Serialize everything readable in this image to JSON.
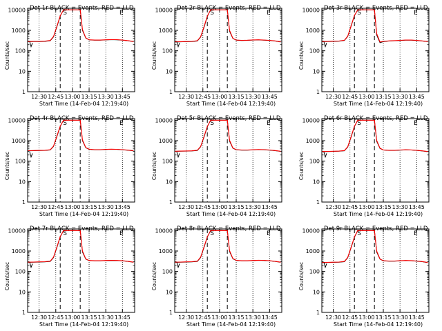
{
  "common": {
    "legend_suffix": "BLACK = Events, RED = LLD",
    "ylabel": "Counts/sec",
    "xlabel": "Start Time (14-Feb-04 12:19:40)",
    "xticks": [
      "12:30",
      "12:45",
      "13:00",
      "13:15",
      "13:30",
      "13:45"
    ],
    "yticks": [
      "1",
      "10",
      "100",
      "1000",
      "10000"
    ],
    "markers": {
      "start": "S",
      "end": "E"
    },
    "colors": {
      "events": "#000000",
      "lld": "#ff0000"
    }
  },
  "chart_data": [
    {
      "type": "line",
      "title": "Det 1r",
      "xlabel": "Start Time (14-Feb-04 12:19:40)",
      "ylabel": "Counts/sec",
      "yscale": "log",
      "ylim": [
        1,
        12000
      ],
      "xlim": [
        "12:19:40",
        "13:56:00"
      ],
      "x": [
        "12:20",
        "12:25",
        "12:30",
        "12:35",
        "12:40",
        "12:43",
        "12:46",
        "12:49",
        "12:52",
        "13:07",
        "13:09",
        "13:12",
        "13:15",
        "13:20",
        "13:25",
        "13:30",
        "13:35",
        "13:40",
        "13:45",
        "13:50",
        "13:55"
      ],
      "series": [
        {
          "name": "Events",
          "values": [
            280,
            285,
            285,
            290,
            310,
            480,
            1500,
            5000,
            10000,
            10000,
            1000,
            420,
            340,
            330,
            330,
            340,
            350,
            345,
            330,
            310,
            280
          ]
        },
        {
          "name": "LLD",
          "values": [
            285,
            290,
            290,
            295,
            320,
            500,
            1600,
            5200,
            10000,
            10000,
            1100,
            430,
            345,
            335,
            335,
            345,
            355,
            350,
            335,
            315,
            285
          ]
        }
      ]
    },
    {
      "type": "line",
      "title": "Det 2r",
      "xlabel": "Start Time (14-Feb-04 12:19:40)",
      "ylabel": "Counts/sec",
      "yscale": "log",
      "ylim": [
        1,
        12000
      ],
      "xlim": [
        "12:19:40",
        "13:56:00"
      ],
      "x": [
        "12:20",
        "12:25",
        "12:30",
        "12:35",
        "12:40",
        "12:43",
        "12:46",
        "12:49",
        "12:52",
        "13:07",
        "13:09",
        "13:12",
        "13:15",
        "13:20",
        "13:25",
        "13:30",
        "13:35",
        "13:40",
        "13:45",
        "13:50",
        "13:55"
      ],
      "series": [
        {
          "name": "Events",
          "values": [
            270,
            275,
            280,
            285,
            300,
            470,
            1400,
            4800,
            10000,
            10000,
            900,
            400,
            330,
            320,
            325,
            335,
            340,
            330,
            320,
            300,
            270
          ]
        },
        {
          "name": "LLD",
          "values": [
            275,
            280,
            285,
            290,
            310,
            490,
            1500,
            5000,
            10000,
            10000,
            1000,
            410,
            335,
            325,
            330,
            340,
            345,
            335,
            325,
            305,
            275
          ]
        }
      ]
    },
    {
      "type": "line",
      "title": "Det 3r",
      "xlabel": "Start Time (14-Feb-04 12:19:40)",
      "ylabel": "Counts/sec",
      "yscale": "log",
      "ylim": [
        1,
        12000
      ],
      "xlim": [
        "12:19:40",
        "13:56:00"
      ],
      "x": [
        "12:20",
        "12:25",
        "12:30",
        "12:35",
        "12:40",
        "12:43",
        "12:46",
        "12:49",
        "12:52",
        "13:07",
        "13:09",
        "13:12",
        "13:15",
        "13:20",
        "13:25",
        "13:30",
        "13:35",
        "13:40",
        "13:45",
        "13:50",
        "13:55"
      ],
      "series": [
        {
          "name": "Events",
          "values": [
            280,
            285,
            290,
            295,
            320,
            500,
            1600,
            5200,
            10000,
            10000,
            600,
            250,
            280,
            300,
            310,
            320,
            330,
            330,
            320,
            300,
            280
          ]
        },
        {
          "name": "LLD",
          "values": [
            285,
            290,
            295,
            300,
            330,
            520,
            1700,
            5400,
            10000,
            10000,
            700,
            270,
            290,
            305,
            315,
            325,
            335,
            335,
            325,
            305,
            285
          ]
        }
      ]
    },
    {
      "type": "line",
      "title": "Det 4r",
      "xlabel": "Start Time (14-Feb-04 12:19:40)",
      "ylabel": "Counts/sec",
      "yscale": "log",
      "ylim": [
        1,
        12000
      ],
      "xlim": [
        "12:19:40",
        "13:56:00"
      ],
      "x": [
        "12:20",
        "12:25",
        "12:30",
        "12:35",
        "12:40",
        "12:43",
        "12:46",
        "12:49",
        "12:52",
        "13:07",
        "13:09",
        "13:12",
        "13:15",
        "13:20",
        "13:25",
        "13:30",
        "13:35",
        "13:40",
        "13:45",
        "13:50",
        "13:55"
      ],
      "series": [
        {
          "name": "Events",
          "values": [
            320,
            325,
            330,
            335,
            350,
            520,
            1600,
            5000,
            10000,
            10000,
            1000,
            450,
            380,
            360,
            360,
            370,
            380,
            375,
            360,
            340,
            320
          ]
        },
        {
          "name": "LLD",
          "values": [
            325,
            330,
            335,
            340,
            360,
            540,
            1700,
            5200,
            10000,
            10000,
            1100,
            460,
            385,
            365,
            365,
            375,
            385,
            380,
            365,
            345,
            325
          ]
        }
      ]
    },
    {
      "type": "line",
      "title": "Det 5r",
      "xlabel": "Start Time (14-Feb-04 12:19:40)",
      "ylabel": "Counts/sec",
      "yscale": "log",
      "ylim": [
        1,
        12000
      ],
      "xlim": [
        "12:19:40",
        "13:56:00"
      ],
      "x": [
        "12:20",
        "12:25",
        "12:30",
        "12:35",
        "12:40",
        "12:43",
        "12:46",
        "12:49",
        "12:52",
        "13:07",
        "13:09",
        "13:12",
        "13:15",
        "13:20",
        "13:25",
        "13:30",
        "13:35",
        "13:40",
        "13:45",
        "13:50",
        "13:55"
      ],
      "series": [
        {
          "name": "Events",
          "values": [
            300,
            305,
            310,
            315,
            330,
            500,
            1500,
            4800,
            10000,
            10000,
            950,
            430,
            360,
            345,
            345,
            355,
            365,
            360,
            345,
            325,
            300
          ]
        },
        {
          "name": "LLD",
          "values": [
            305,
            310,
            315,
            320,
            340,
            520,
            1600,
            5000,
            10000,
            10000,
            1050,
            440,
            365,
            350,
            350,
            360,
            370,
            365,
            350,
            330,
            305
          ]
        }
      ]
    },
    {
      "type": "line",
      "title": "Det 6r",
      "xlabel": "Start Time (14-Feb-04 12:19:40)",
      "ylabel": "Counts/sec",
      "yscale": "log",
      "ylim": [
        1,
        12000
      ],
      "xlim": [
        "12:19:40",
        "13:56:00"
      ],
      "x": [
        "12:20",
        "12:25",
        "12:30",
        "12:35",
        "12:40",
        "12:43",
        "12:46",
        "12:49",
        "12:52",
        "13:07",
        "13:09",
        "13:12",
        "13:15",
        "13:20",
        "13:25",
        "13:30",
        "13:35",
        "13:40",
        "13:45",
        "13:50",
        "13:55"
      ],
      "series": [
        {
          "name": "Events",
          "values": [
            290,
            295,
            300,
            305,
            320,
            490,
            1500,
            4900,
            10000,
            10000,
            950,
            420,
            350,
            335,
            335,
            345,
            355,
            350,
            335,
            315,
            290
          ]
        },
        {
          "name": "LLD",
          "values": [
            295,
            300,
            305,
            310,
            330,
            510,
            1600,
            5100,
            10000,
            10000,
            1050,
            430,
            355,
            340,
            340,
            350,
            360,
            355,
            340,
            320,
            295
          ]
        }
      ]
    },
    {
      "type": "line",
      "title": "Det 7r",
      "xlabel": "Start Time (14-Feb-04 12:19:40)",
      "ylabel": "Counts/sec",
      "yscale": "log",
      "ylim": [
        1,
        12000
      ],
      "xlim": [
        "12:19:40",
        "13:56:00"
      ],
      "x": [
        "12:20",
        "12:25",
        "12:30",
        "12:35",
        "12:40",
        "12:43",
        "12:46",
        "12:49",
        "12:52",
        "13:07",
        "13:09",
        "13:12",
        "13:15",
        "13:20",
        "13:25",
        "13:30",
        "13:35",
        "13:40",
        "13:45",
        "13:50",
        "13:55"
      ],
      "series": [
        {
          "name": "Events",
          "values": [
            280,
            285,
            290,
            295,
            310,
            480,
            1500,
            4900,
            10000,
            10000,
            900,
            400,
            340,
            330,
            330,
            340,
            345,
            340,
            330,
            310,
            280
          ]
        },
        {
          "name": "LLD",
          "values": [
            285,
            290,
            295,
            300,
            320,
            500,
            1600,
            5100,
            10000,
            10000,
            1000,
            410,
            345,
            335,
            335,
            345,
            350,
            345,
            335,
            315,
            285
          ]
        }
      ]
    },
    {
      "type": "line",
      "title": "Det 8r",
      "xlabel": "Start Time (14-Feb-04 12:19:40)",
      "ylabel": "Counts/sec",
      "yscale": "log",
      "ylim": [
        1,
        12000
      ],
      "xlim": [
        "12:19:40",
        "13:56:00"
      ],
      "x": [
        "12:20",
        "12:25",
        "12:30",
        "12:35",
        "12:40",
        "12:43",
        "12:46",
        "12:49",
        "12:52",
        "13:07",
        "13:09",
        "13:12",
        "13:15",
        "13:20",
        "13:25",
        "13:30",
        "13:35",
        "13:40",
        "13:45",
        "13:50",
        "13:55"
      ],
      "series": [
        {
          "name": "Events",
          "values": [
            280,
            285,
            290,
            295,
            310,
            480,
            1500,
            4800,
            10000,
            10000,
            950,
            420,
            345,
            330,
            330,
            340,
            350,
            345,
            330,
            310,
            280
          ]
        },
        {
          "name": "LLD",
          "values": [
            285,
            290,
            295,
            300,
            320,
            500,
            1600,
            5000,
            10000,
            10000,
            1050,
            430,
            350,
            335,
            335,
            345,
            355,
            350,
            335,
            315,
            285
          ]
        }
      ]
    },
    {
      "type": "line",
      "title": "Det 9r",
      "xlabel": "Start Time (14-Feb-04 12:19:40)",
      "ylabel": "Counts/sec",
      "yscale": "log",
      "ylim": [
        1,
        12000
      ],
      "xlim": [
        "12:19:40",
        "13:56:00"
      ],
      "x": [
        "12:20",
        "12:25",
        "12:30",
        "12:35",
        "12:40",
        "12:43",
        "12:46",
        "12:49",
        "12:52",
        "13:07",
        "13:09",
        "13:12",
        "13:15",
        "13:20",
        "13:25",
        "13:30",
        "13:35",
        "13:40",
        "13:45",
        "13:50",
        "13:55"
      ],
      "series": [
        {
          "name": "Events",
          "values": [
            270,
            275,
            280,
            285,
            300,
            470,
            1450,
            4700,
            10000,
            10000,
            900,
            400,
            330,
            320,
            320,
            330,
            340,
            335,
            320,
            300,
            270
          ]
        },
        {
          "name": "LLD",
          "values": [
            275,
            280,
            285,
            290,
            310,
            490,
            1550,
            4900,
            10000,
            10000,
            1000,
            410,
            335,
            325,
            325,
            335,
            345,
            340,
            325,
            305,
            275
          ]
        }
      ]
    }
  ]
}
